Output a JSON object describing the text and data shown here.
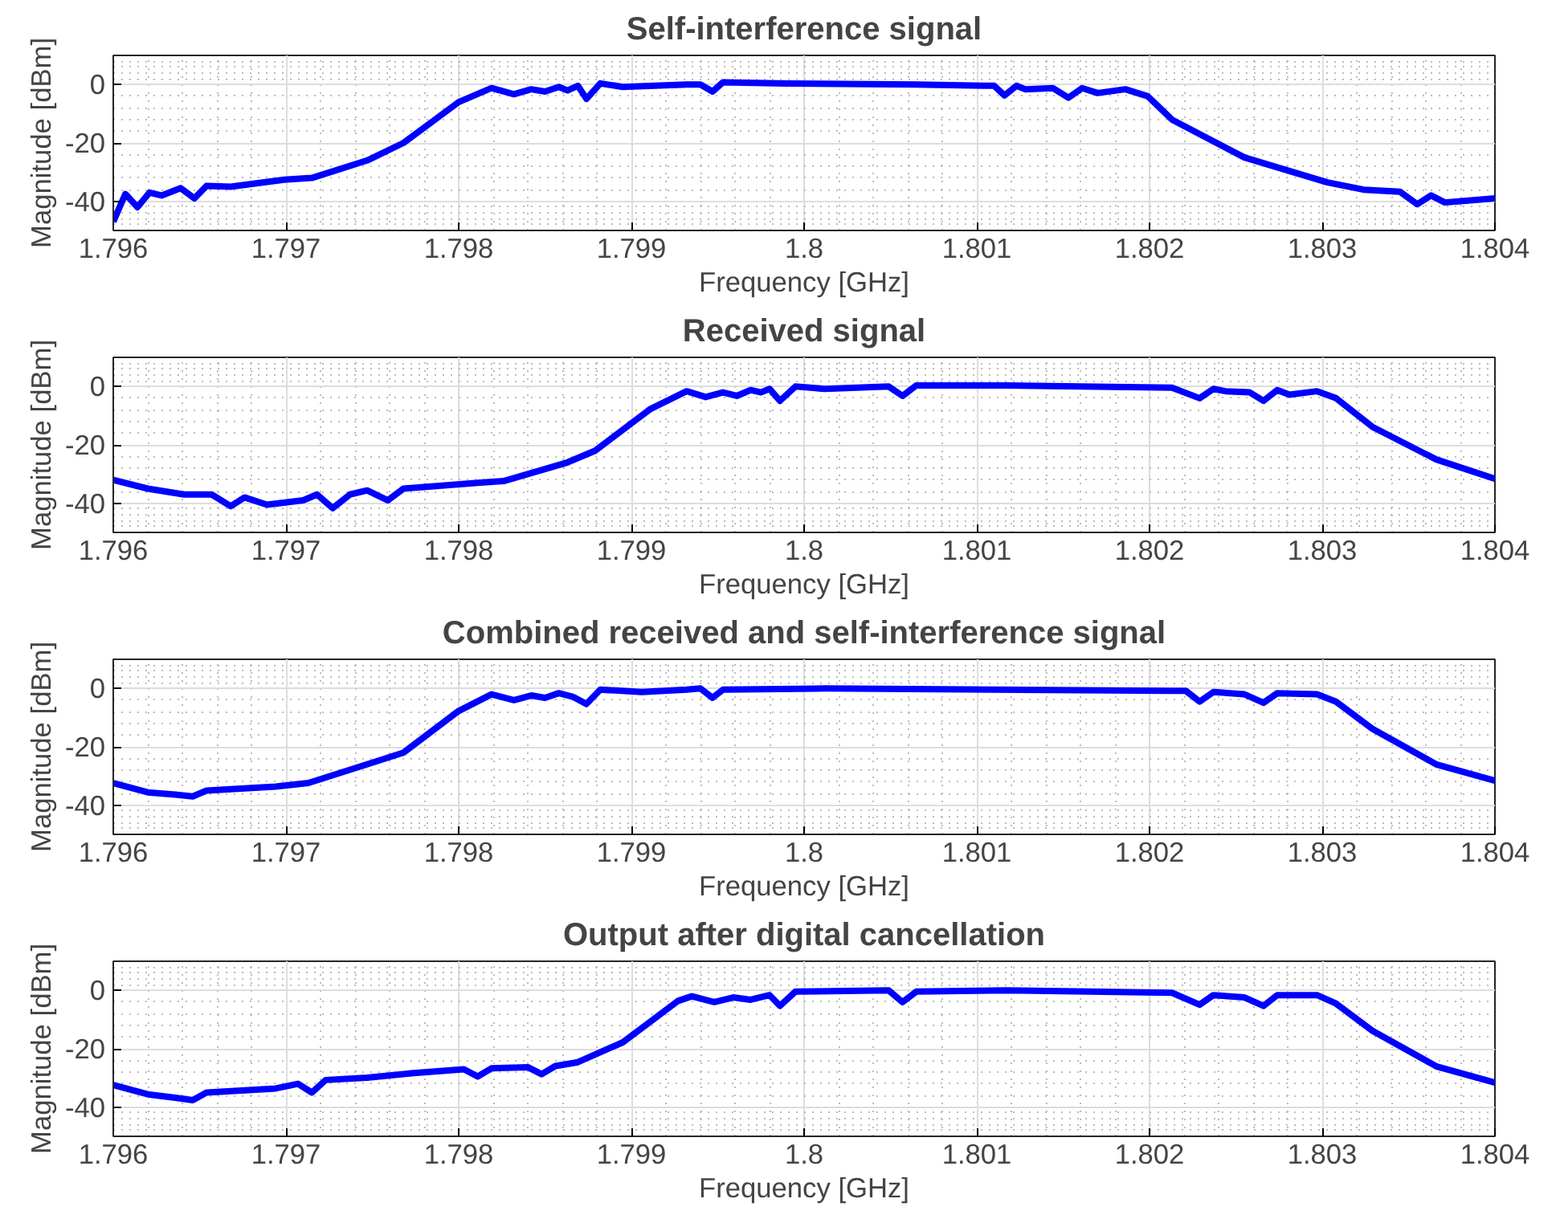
{
  "chart_data": [
    {
      "type": "line",
      "title": "Self-interference signal",
      "xlabel": "Frequency [GHz]",
      "ylabel": "Magnitude [dBm]",
      "xlim": [
        1.796,
        1.804
      ],
      "xticks": [
        1.796,
        1.797,
        1.798,
        1.799,
        1.8,
        1.801,
        1.802,
        1.803,
        1.804
      ],
      "ylim": [
        -50,
        10
      ],
      "yticks": [
        -40,
        -20,
        0
      ],
      "grid": true,
      "line_style": "solid",
      "x": [
        1.796,
        1.79607,
        1.79614,
        1.79621,
        1.79628,
        1.79639,
        1.79647,
        1.79654,
        1.79668,
        1.79699,
        1.79715,
        1.79747,
        1.79768,
        1.798,
        1.79819,
        1.79832,
        1.79842,
        1.7985,
        1.79858,
        1.79863,
        1.79869,
        1.79874,
        1.79882,
        1.79895,
        1.79932,
        1.7994,
        1.79947,
        1.79953,
        1.7999,
        1.80065,
        1.80104,
        1.8011,
        1.80116,
        1.80123,
        1.80128,
        1.80144,
        1.80153,
        1.80161,
        1.8017,
        1.80186,
        1.80199,
        1.80213,
        1.80255,
        1.80303,
        1.80324,
        1.80345,
        1.80355,
        1.80363,
        1.80371,
        1.804
      ],
      "series": [
        {
          "color": "#0000ff",
          "values": [
            -47,
            -37.5,
            -42,
            -37,
            -38,
            -35.5,
            -39,
            -34.7,
            -35,
            -32.6,
            -32,
            -26,
            -20,
            -6,
            -1.2,
            -3.3,
            -1.6,
            -2.4,
            -0.8,
            -2,
            -0.4,
            -4.9,
            0.4,
            -0.8,
            0,
            0,
            -2.4,
            0.8,
            0.4,
            0,
            -0.4,
            -0.4,
            -3.7,
            -0.4,
            -1.6,
            -1.2,
            -4.5,
            -1.2,
            -2.9,
            -1.6,
            -4,
            -12,
            -25,
            -33.5,
            -36,
            -36.7,
            -41,
            -38,
            -40.4,
            -39
          ]
        }
      ]
    },
    {
      "type": "line",
      "title": "Received signal",
      "xlabel": "Frequency [GHz]",
      "ylabel": "Magnitude [dBm]",
      "xlim": [
        1.796,
        1.804
      ],
      "xticks": [
        1.796,
        1.797,
        1.798,
        1.799,
        1.8,
        1.801,
        1.802,
        1.803,
        1.804
      ],
      "ylim": [
        -50,
        10
      ],
      "yticks": [
        -40,
        -20,
        0
      ],
      "grid": true,
      "line_style": "solid",
      "x": [
        1.796,
        1.7962,
        1.79641,
        1.79657,
        1.79668,
        1.79676,
        1.79689,
        1.7971,
        1.79718,
        1.79727,
        1.79737,
        1.79747,
        1.79759,
        1.79768,
        1.79811,
        1.79826,
        1.79863,
        1.79879,
        1.79911,
        1.79932,
        1.79943,
        1.79953,
        1.79961,
        1.79969,
        1.79975,
        1.7998,
        1.79986,
        1.79995,
        1.80012,
        1.80049,
        1.80057,
        1.80065,
        1.80117,
        1.80213,
        1.80229,
        1.80237,
        1.80244,
        1.80258,
        1.80266,
        1.80274,
        1.80281,
        1.80297,
        1.80308,
        1.80329,
        1.80366,
        1.804
      ],
      "series": [
        {
          "color": "#0000ff",
          "values": [
            -32,
            -35,
            -37,
            -37,
            -41,
            -38,
            -40.5,
            -39,
            -37,
            -41.7,
            -37,
            -35.6,
            -39,
            -35,
            -33,
            -32.4,
            -26,
            -22,
            -7.7,
            -1.6,
            -3.6,
            -2,
            -3.2,
            -1.2,
            -2,
            -0.8,
            -4.9,
            0,
            -0.8,
            0,
            -3.2,
            0.4,
            0.4,
            -0.4,
            -4,
            -0.8,
            -1.6,
            -2,
            -4.9,
            -1.2,
            -2.8,
            -1.6,
            -4,
            -13.8,
            -25,
            -31.6
          ]
        }
      ]
    },
    {
      "type": "line",
      "title": "Combined received and self-interference signal",
      "xlabel": "Frequency [GHz]",
      "ylabel": "Magnitude [dBm]",
      "xlim": [
        1.796,
        1.804
      ],
      "xticks": [
        1.796,
        1.797,
        1.798,
        1.799,
        1.8,
        1.801,
        1.802,
        1.803,
        1.804
      ],
      "ylim": [
        -50,
        10
      ],
      "yticks": [
        -40,
        -20,
        0
      ],
      "grid": true,
      "line_style": "solid",
      "x": [
        1.796,
        1.7962,
        1.79636,
        1.79646,
        1.79654,
        1.79694,
        1.79713,
        1.79747,
        1.79768,
        1.798,
        1.79819,
        1.79832,
        1.79842,
        1.7985,
        1.79858,
        1.79866,
        1.79874,
        1.79882,
        1.79906,
        1.79932,
        1.7994,
        1.79947,
        1.79953,
        1.80012,
        1.80213,
        1.80221,
        1.80229,
        1.80237,
        1.80255,
        1.80266,
        1.80274,
        1.80297,
        1.80308,
        1.80329,
        1.80366,
        1.804
      ],
      "series": [
        {
          "color": "#0000ff",
          "values": [
            -32.4,
            -35.6,
            -36.4,
            -37,
            -35,
            -33.6,
            -32.4,
            -26,
            -22,
            -7.7,
            -2,
            -4,
            -2.4,
            -3.2,
            -1.6,
            -2.8,
            -5.3,
            -0.4,
            -1.2,
            -0.4,
            0,
            -3.2,
            -0.4,
            0,
            -0.8,
            -0.8,
            -4.5,
            -1.2,
            -2,
            -4.9,
            -1.6,
            -2,
            -4.5,
            -13.8,
            -26,
            -31.6
          ]
        }
      ]
    },
    {
      "type": "line",
      "title": "Output after digital cancellation",
      "xlabel": "Frequency [GHz]",
      "ylabel": "Magnitude [dBm]",
      "xlim": [
        1.796,
        1.804
      ],
      "xticks": [
        1.796,
        1.797,
        1.798,
        1.799,
        1.8,
        1.801,
        1.802,
        1.803,
        1.804
      ],
      "ylim": [
        -50,
        10
      ],
      "yticks": [
        -40,
        -20,
        0
      ],
      "grid": true,
      "line_style": "solid",
      "x": [
        1.796,
        1.7962,
        1.79636,
        1.79646,
        1.79654,
        1.79694,
        1.79707,
        1.79715,
        1.79723,
        1.79747,
        1.79774,
        1.79803,
        1.79811,
        1.79819,
        1.7984,
        1.79848,
        1.79856,
        1.79869,
        1.79895,
        1.79927,
        1.79935,
        1.79948,
        1.79959,
        1.79969,
        1.7998,
        1.79986,
        1.79995,
        1.80049,
        1.80057,
        1.80065,
        1.80117,
        1.80213,
        1.80229,
        1.80237,
        1.80255,
        1.80266,
        1.80274,
        1.80297,
        1.80308,
        1.80329,
        1.80366,
        1.804
      ],
      "series": [
        {
          "color": "#0000ff",
          "values": [
            -32.4,
            -35.6,
            -36.8,
            -37.6,
            -35,
            -33.6,
            -32,
            -35,
            -30.7,
            -29.9,
            -28.3,
            -27,
            -29.5,
            -26.7,
            -26.3,
            -28.7,
            -25.9,
            -24.6,
            -17.8,
            -3.6,
            -2,
            -4,
            -2.4,
            -3.2,
            -1.6,
            -5.3,
            -0.4,
            0,
            -4,
            -0.4,
            0,
            -0.8,
            -4.9,
            -1.6,
            -2.4,
            -5.3,
            -1.6,
            -1.6,
            -4.5,
            -13.8,
            -26,
            -31.6
          ]
        }
      ]
    }
  ]
}
